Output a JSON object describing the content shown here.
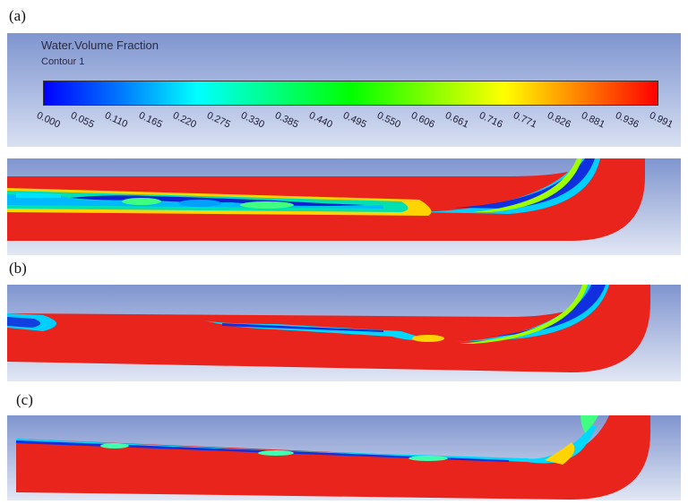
{
  "figure": {
    "labels": {
      "a": "(a)",
      "b": "(b)",
      "c": "(c)"
    }
  },
  "legend": {
    "title": "Water.Volume Fraction",
    "subtitle": "Contour 1",
    "ticks": [
      "0.000",
      "0.055",
      "0.110",
      "0.165",
      "0.220",
      "0.275",
      "0.330",
      "0.385",
      "0.440",
      "0.495",
      "0.550",
      "0.606",
      "0.661",
      "0.716",
      "0.771",
      "0.826",
      "0.881",
      "0.936",
      "0.991"
    ],
    "colormap": [
      "#0000ff",
      "#0078ff",
      "#00ffff",
      "#00ff80",
      "#00ff00",
      "#80ff00",
      "#ffff00",
      "#ff8000",
      "#ff0000"
    ]
  },
  "colors": {
    "water": "#e8241c",
    "air": "#0a1fd6",
    "background_top": "#7f95cf",
    "background_bottom": "#dfe5f3"
  }
}
